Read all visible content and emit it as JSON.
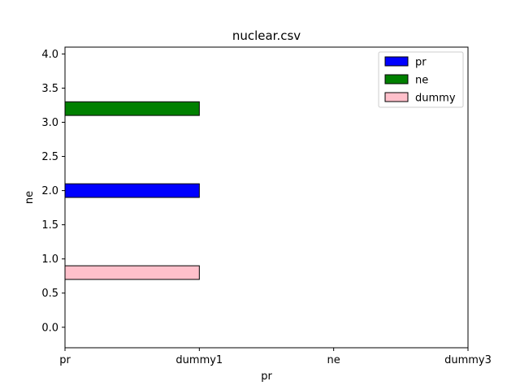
{
  "chart_data": {
    "type": "bar",
    "orientation": "horizontal",
    "title": "nuclear.csv",
    "xlabel": "pr",
    "ylabel": "ne",
    "x_ticks": [
      "pr",
      "dummy1",
      "ne",
      "dummy3"
    ],
    "xlim": [
      0,
      3
    ],
    "ylim": [
      -0.3,
      4.1
    ],
    "y_ticks": [
      "0.0",
      "0.5",
      "1.0",
      "1.5",
      "2.0",
      "2.5",
      "3.0",
      "3.5",
      "4.0"
    ],
    "grid": false,
    "legend_position": "top-right",
    "series": [
      {
        "name": "pr",
        "color": "#0000ff",
        "y": 2.0,
        "x_start": 0,
        "x_end": 1,
        "height": 0.2
      },
      {
        "name": "ne",
        "color": "#008000",
        "y": 3.2,
        "x_start": 0,
        "x_end": 1,
        "height": 0.2
      },
      {
        "name": "dummy",
        "color": "#ffc0cb",
        "y": 0.8,
        "x_start": 0,
        "x_end": 1,
        "height": 0.2
      }
    ]
  }
}
